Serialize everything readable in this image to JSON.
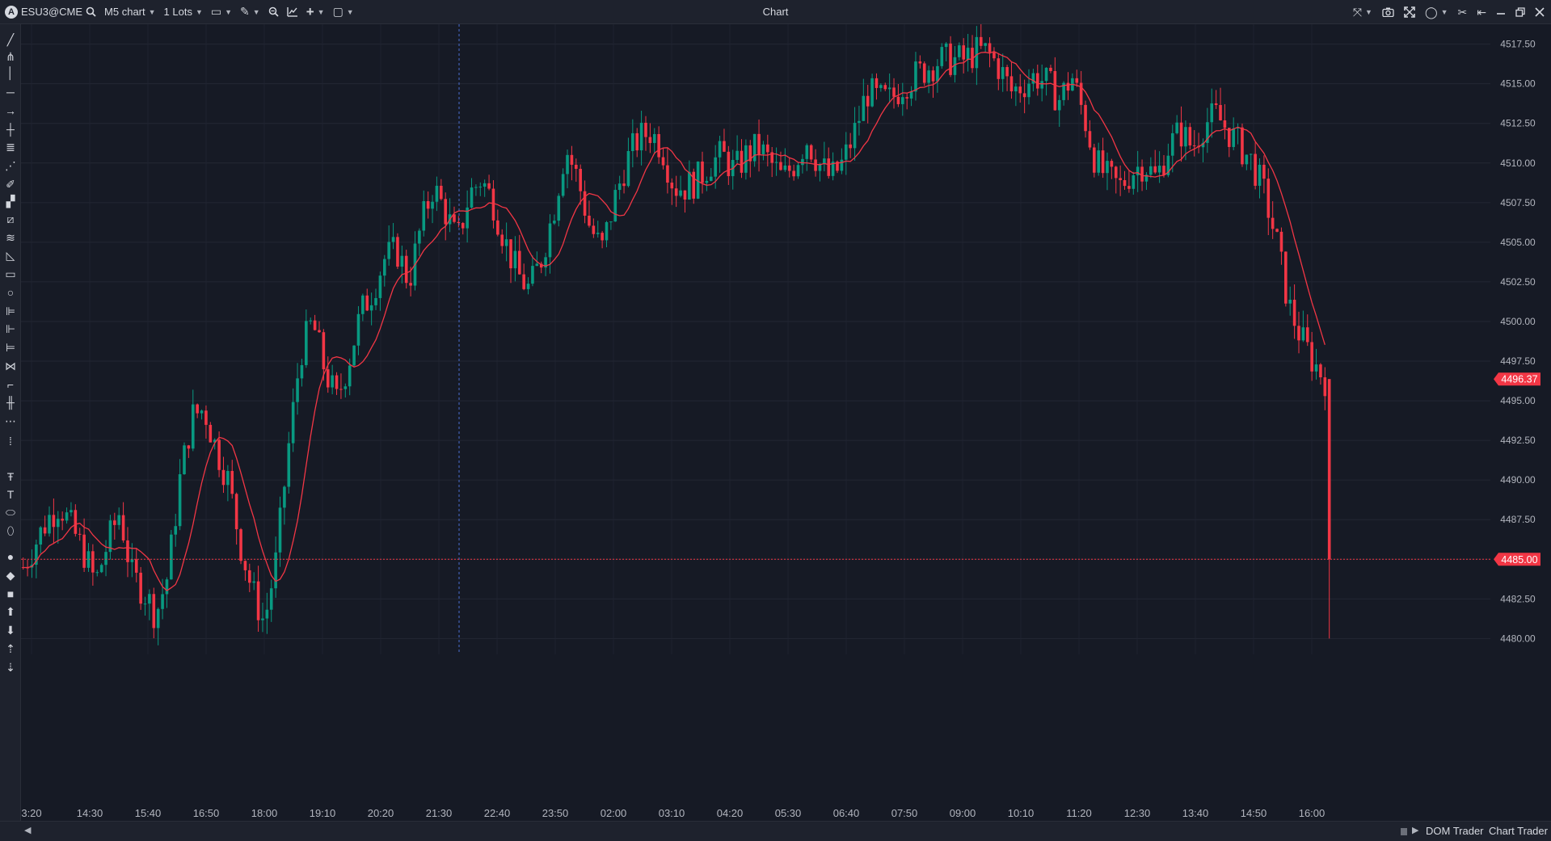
{
  "toolbar": {
    "symbol": "ESU3@CME",
    "chart_type": "M5 chart",
    "lots": "1 Lots",
    "title": "Chart",
    "left_icons": [
      "search-icon",
      "bar-style-icon",
      "pencil-icon",
      "zoom-icon",
      "indicators-icon",
      "crosshair-plus-icon",
      "template-icon"
    ],
    "right_icons": [
      "sync-icon",
      "camera-icon",
      "fullscreen-icon",
      "circle-icon",
      "tools-icon",
      "pin-icon",
      "minimize-icon",
      "restore-icon",
      "close-icon"
    ]
  },
  "left_tools": [
    "line-tool-icon",
    "pitchfork-icon",
    "vertical-line-icon",
    "horizontal-line-icon",
    "arrow-icon",
    "cross-icon",
    "parallel-lines-icon",
    "trend-icon",
    "brush-icon",
    "paint-roller-icon",
    "ruler-icon",
    "fib-icon",
    "triangle-icon",
    "rectangle-icon",
    "ellipse-icon",
    "fib-fan-icon",
    "gann-icon",
    "fib-extension-icon",
    "pattern-icon",
    "steps-icon",
    "levels-icon",
    "dots-icon",
    "more-dots-icon",
    "text-box-icon",
    "text-icon",
    "price-label-icon",
    "callout-icon",
    "circle-marker-icon",
    "diamond-marker-icon",
    "square-marker-icon",
    "arrow-up-icon",
    "arrow-down-icon",
    "sort-asc-icon",
    "sort-desc-icon"
  ],
  "price_axis": {
    "labels": [
      "4517.50",
      "4515.00",
      "4512.50",
      "4510.00",
      "4507.50",
      "4505.00",
      "4502.50",
      "4500.00",
      "4497.50",
      "4495.00",
      "4492.50",
      "4490.00",
      "4487.50",
      "4485.00",
      "4482.50",
      "4480.00"
    ],
    "markers": [
      {
        "label": "4496.37",
        "color": "#f23645"
      },
      {
        "label": "4485.00",
        "color": "#f23645"
      }
    ]
  },
  "time_axis": {
    "labels": [
      "3:20",
      "14:30",
      "15:40",
      "16:50",
      "18:00",
      "19:10",
      "20:20",
      "21:30",
      "22:40",
      "23:50",
      "02:00",
      "03:10",
      "04:20",
      "05:30",
      "06:40",
      "07:50",
      "09:00",
      "10:10",
      "11:20",
      "12:30",
      "13:40",
      "14:50",
      "16:00"
    ]
  },
  "chart_data": {
    "type": "candlestick",
    "symbol": "ESU3@CME",
    "interval": "M5",
    "ylim": [
      4479.0,
      4518.5
    ],
    "y_ticks": [
      4480.0,
      4482.5,
      4485.0,
      4487.5,
      4490.0,
      4492.5,
      4495.0,
      4497.5,
      4500.0,
      4502.5,
      4505.0,
      4507.5,
      4510.0,
      4512.5,
      4515.0,
      4517.5
    ],
    "up_color": "#089981",
    "down_color": "#f23645",
    "ma_color": "#f23645",
    "close_path": [
      4484.5,
      4486.0,
      4487.5,
      4488.5,
      4487.0,
      4485.5,
      4483.5,
      4486.0,
      4488.0,
      4484.0,
      4483.0,
      4481.5,
      4484.0,
      4490.0,
      4494.0,
      4494.5,
      4492.0,
      4490.0,
      4486.0,
      4483.0,
      4481.0,
      4485.0,
      4492.0,
      4498.0,
      4500.0,
      4497.0,
      4495.0,
      4497.5,
      4500.5,
      4502.0,
      4504.0,
      4504.5,
      4502.5,
      4506.0,
      4508.5,
      4507.0,
      4505.0,
      4508.0,
      4509.0,
      4507.5,
      4505.0,
      4503.0,
      4502.0,
      4504.0,
      4507.0,
      4511.0,
      4509.0,
      4506.0,
      4504.5,
      4507.5,
      4510.0,
      4511.5,
      4512.0,
      4511.0,
      4508.5,
      4508.5,
      4509.0,
      4510.0,
      4510.5,
      4509.5,
      4510.5,
      4511.0,
      4510.0,
      4509.0,
      4510.0,
      4511.5,
      4510.0,
      4509.0,
      4510.0,
      4512.0,
      4514.5,
      4514.0,
      4514.0,
      4515.0,
      4515.5,
      4516.0,
      4516.5,
      4516.5,
      4516.5,
      4517.0,
      4517.0,
      4516.0,
      4514.5,
      4515.0,
      4515.5,
      4515.0,
      4514.0,
      4515.5,
      4513.0,
      4510.0,
      4509.0,
      4508.5,
      4509.5,
      4510.0,
      4509.0,
      4511.0,
      4512.0,
      4511.0,
      4512.5,
      4513.0,
      4512.0,
      4511.0,
      4510.0,
      4508.0,
      4505.0,
      4501.0,
      4499.0,
      4497.5,
      4496.37
    ],
    "last_price": 4496.37,
    "spike_low": 4485.0,
    "spike_wick_low": 4480.0
  }
}
